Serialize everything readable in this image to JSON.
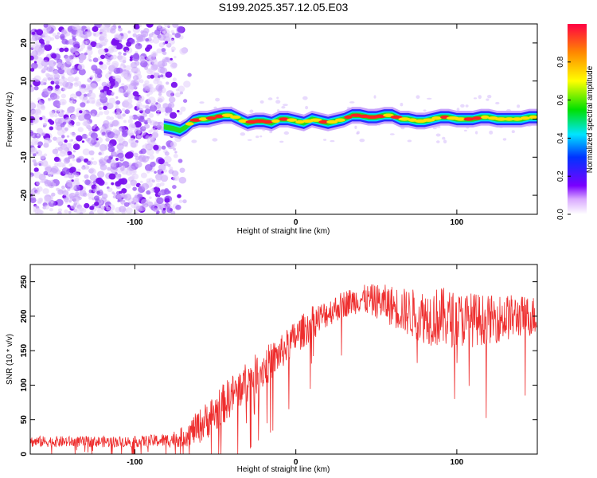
{
  "figure_title": "S199.2025.357.12.05.E03",
  "colors": {
    "spectro_points": "#7b1cf0",
    "snr_line": "#ee2e2e",
    "axis": "#000000"
  },
  "chart_data": [
    {
      "id": "spectrogram",
      "type": "heatmap",
      "title": "",
      "xlabel": "Height of straight line (km)",
      "ylabel": "Frequency (Hz)",
      "xlim": [
        -165,
        150
      ],
      "ylim": [
        -25,
        25
      ],
      "xticks": [
        -100,
        0,
        100
      ],
      "yticks": [
        -20,
        -10,
        0,
        10,
        20
      ],
      "noise_region_x": [
        -165,
        -65
      ],
      "noise_fade_x": [
        -85,
        -65
      ],
      "signal_track": {
        "x": [
          -82,
          -76,
          -72,
          -68,
          -64,
          -60,
          -55,
          -50,
          -45,
          -40,
          -35,
          -30,
          -25,
          -20,
          -15,
          -10,
          -5,
          0,
          5,
          10,
          15,
          20,
          25,
          30,
          35,
          40,
          45,
          50,
          55,
          60,
          65,
          70,
          75,
          80,
          85,
          90,
          95,
          100,
          105,
          110,
          115,
          120,
          125,
          130,
          135,
          140,
          145,
          150
        ],
        "freq": [
          -2,
          -2.5,
          -3,
          -2,
          -0.5,
          0,
          0,
          0.5,
          1,
          1,
          0,
          -1,
          -0.5,
          -0.5,
          -1,
          0,
          0,
          -0.5,
          -1,
          0,
          -0.5,
          -1,
          -0.5,
          0,
          1,
          1,
          0.5,
          0.5,
          1,
          1,
          0,
          0,
          -0.5,
          -0.5,
          0,
          0.5,
          0.5,
          0,
          0,
          0,
          0.5,
          0.5,
          0,
          0,
          0,
          0,
          0.5,
          0.5
        ]
      },
      "colorbar": {
        "label": "Normalized spectral amplitude",
        "range": [
          0,
          1
        ],
        "ticks": [
          0.0,
          0.2,
          0.4,
          0.6,
          0.8
        ],
        "tick_labels": [
          "0.0",
          "0.2",
          "0.4",
          "0.6",
          "0.8"
        ]
      }
    },
    {
      "id": "snr",
      "type": "line",
      "title": "",
      "xlabel": "Height of straight line (km)",
      "ylabel": "SNR (10 * v/v)",
      "xlim": [
        -165,
        150
      ],
      "ylim": [
        0,
        275
      ],
      "xticks": [
        -100,
        0,
        100
      ],
      "yticks": [
        0,
        50,
        100,
        150,
        200,
        250
      ],
      "envelope": {
        "x": [
          -165,
          -140,
          -120,
          -100,
          -80,
          -70,
          -60,
          -50,
          -40,
          -30,
          -20,
          -10,
          0,
          10,
          20,
          30,
          40,
          50,
          60,
          70,
          80,
          90,
          100,
          110,
          120,
          130,
          140,
          150
        ],
        "mean": [
          18,
          18,
          18,
          18,
          20,
          25,
          40,
          60,
          85,
          105,
          125,
          145,
          170,
          190,
          205,
          218,
          225,
          222,
          215,
          205,
          200,
          198,
          195,
          195,
          195,
          198,
          200,
          200
        ],
        "spread": [
          8,
          8,
          8,
          8,
          10,
          15,
          25,
          30,
          30,
          30,
          30,
          25,
          25,
          25,
          20,
          20,
          20,
          25,
          30,
          35,
          40,
          45,
          40,
          40,
          35,
          35,
          30,
          30
        ]
      }
    }
  ]
}
